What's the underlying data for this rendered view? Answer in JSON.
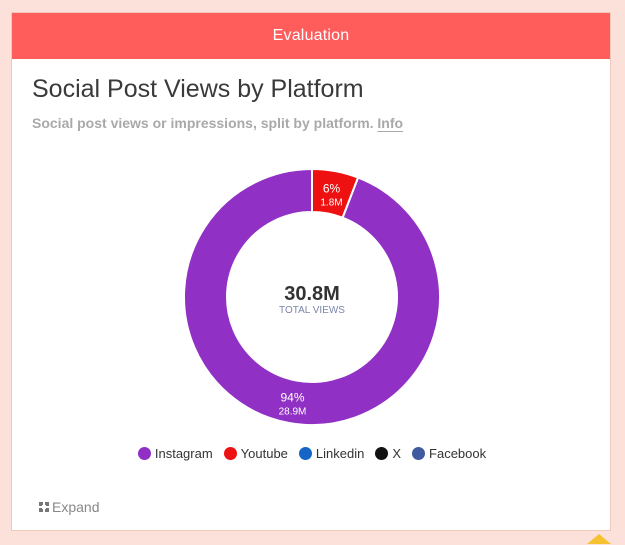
{
  "header": {
    "title": "Evaluation"
  },
  "card": {
    "title": "Social Post Views by Platform",
    "subtitle": "Social post views or impressions, split by platform.",
    "info_link": "Info",
    "expand_label": "Expand"
  },
  "chart_data": {
    "type": "pie",
    "variant": "donut",
    "title": "Social Post Views by Platform",
    "center_value": "30.8M",
    "center_label": "TOTAL VIEWS",
    "slices": [
      {
        "name": "Instagram",
        "value": 28.9,
        "percent_label": "94%",
        "value_label": "28.9M",
        "color": "#9030c4"
      },
      {
        "name": "Youtube",
        "value": 1.8,
        "percent_label": "6%",
        "value_label": "1.8M",
        "color": "#ee1111"
      },
      {
        "name": "Linkedin",
        "value": 0,
        "percent_label": "",
        "value_label": "",
        "color": "#1565c8"
      },
      {
        "name": "X",
        "value": 0,
        "percent_label": "",
        "value_label": "",
        "color": "#111111"
      },
      {
        "name": "Facebook",
        "value": 0,
        "percent_label": "",
        "value_label": "",
        "color": "#3f5a9e"
      }
    ],
    "legend_position": "bottom"
  },
  "legend": {
    "items": [
      {
        "label": "Instagram",
        "color": "#9030c4"
      },
      {
        "label": "Youtube",
        "color": "#ee1111"
      },
      {
        "label": "Linkedin",
        "color": "#1565c8"
      },
      {
        "label": "X",
        "color": "#111111"
      },
      {
        "label": "Facebook",
        "color": "#3f5a9e"
      }
    ]
  },
  "colors": {
    "header": "#ff5c5c",
    "page_background": "#fbe1d9"
  }
}
